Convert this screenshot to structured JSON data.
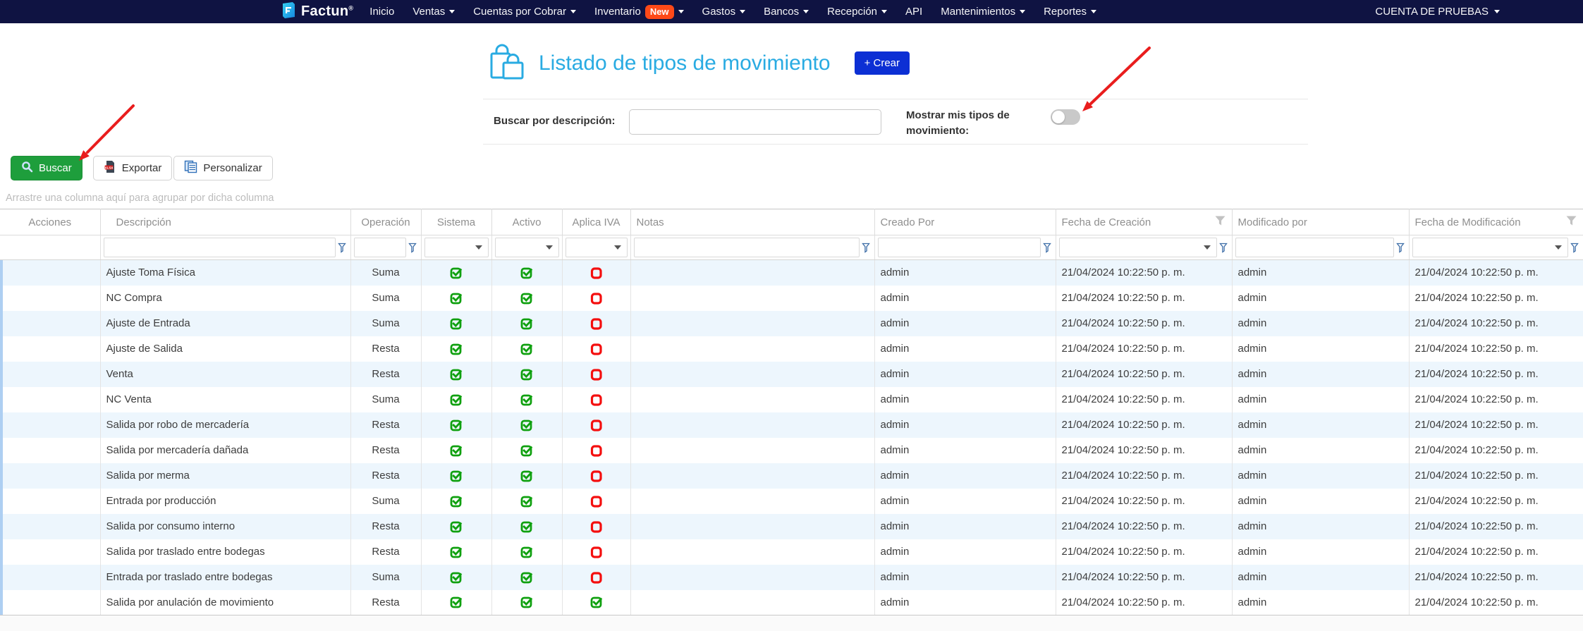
{
  "navbar": {
    "brand": "Factun",
    "brand_mark": "®",
    "items": [
      {
        "label": "Inicio",
        "caret": false,
        "badge": null
      },
      {
        "label": "Ventas",
        "caret": true,
        "badge": null
      },
      {
        "label": "Cuentas por Cobrar",
        "caret": true,
        "badge": null
      },
      {
        "label": "Inventario",
        "caret": true,
        "badge": "New"
      },
      {
        "label": "Gastos",
        "caret": true,
        "badge": null
      },
      {
        "label": "Bancos",
        "caret": true,
        "badge": null
      },
      {
        "label": "Recepción",
        "caret": true,
        "badge": null
      },
      {
        "label": "API",
        "caret": false,
        "badge": null
      },
      {
        "label": "Mantenimientos",
        "caret": true,
        "badge": null
      },
      {
        "label": "Reportes",
        "caret": true,
        "badge": null
      }
    ],
    "account": "CUENTA DE PRUEBAS"
  },
  "header": {
    "title": "Listado de tipos de movimiento",
    "create_button": "+ Crear"
  },
  "filters": {
    "search_label": "Buscar por descripción:",
    "search_value": "",
    "toggle_label": "Mostrar mis tipos de movimiento:",
    "toggle_state": "off"
  },
  "toolbar": {
    "buscar": "Buscar",
    "exportar": "Exportar",
    "personalizar": "Personalizar"
  },
  "group_panel": "Arrastre una columna aquí para agrupar por dicha columna",
  "grid": {
    "columns": [
      "Acciones",
      "Descripción",
      "Operación",
      "Sistema",
      "Activo",
      "Aplica IVA",
      "Notas",
      "Creado Por",
      "Fecha de Creación",
      "Modificado por",
      "Fecha de Modificación"
    ],
    "rows": [
      {
        "descripcion": "Ajuste Toma Física",
        "operacion": "Suma",
        "sistema": true,
        "activo": true,
        "aplica_iva": false,
        "notas": "",
        "creado_por": "admin",
        "fecha_creacion": "21/04/2024 10:22:50 p. m.",
        "modificado_por": "admin",
        "fecha_modificacion": "21/04/2024 10:22:50 p. m."
      },
      {
        "descripcion": "NC Compra",
        "operacion": "Suma",
        "sistema": true,
        "activo": true,
        "aplica_iva": false,
        "notas": "",
        "creado_por": "admin",
        "fecha_creacion": "21/04/2024 10:22:50 p. m.",
        "modificado_por": "admin",
        "fecha_modificacion": "21/04/2024 10:22:50 p. m."
      },
      {
        "descripcion": "Ajuste de Entrada",
        "operacion": "Suma",
        "sistema": true,
        "activo": true,
        "aplica_iva": false,
        "notas": "",
        "creado_por": "admin",
        "fecha_creacion": "21/04/2024 10:22:50 p. m.",
        "modificado_por": "admin",
        "fecha_modificacion": "21/04/2024 10:22:50 p. m."
      },
      {
        "descripcion": "Ajuste de Salida",
        "operacion": "Resta",
        "sistema": true,
        "activo": true,
        "aplica_iva": false,
        "notas": "",
        "creado_por": "admin",
        "fecha_creacion": "21/04/2024 10:22:50 p. m.",
        "modificado_por": "admin",
        "fecha_modificacion": "21/04/2024 10:22:50 p. m."
      },
      {
        "descripcion": "Venta",
        "operacion": "Resta",
        "sistema": true,
        "activo": true,
        "aplica_iva": false,
        "notas": "",
        "creado_por": "admin",
        "fecha_creacion": "21/04/2024 10:22:50 p. m.",
        "modificado_por": "admin",
        "fecha_modificacion": "21/04/2024 10:22:50 p. m."
      },
      {
        "descripcion": "NC Venta",
        "operacion": "Suma",
        "sistema": true,
        "activo": true,
        "aplica_iva": false,
        "notas": "",
        "creado_por": "admin",
        "fecha_creacion": "21/04/2024 10:22:50 p. m.",
        "modificado_por": "admin",
        "fecha_modificacion": "21/04/2024 10:22:50 p. m."
      },
      {
        "descripcion": "Salida por robo de mercadería",
        "operacion": "Resta",
        "sistema": true,
        "activo": true,
        "aplica_iva": false,
        "notas": "",
        "creado_por": "admin",
        "fecha_creacion": "21/04/2024 10:22:50 p. m.",
        "modificado_por": "admin",
        "fecha_modificacion": "21/04/2024 10:22:50 p. m."
      },
      {
        "descripcion": "Salida por mercadería dañada",
        "operacion": "Resta",
        "sistema": true,
        "activo": true,
        "aplica_iva": false,
        "notas": "",
        "creado_por": "admin",
        "fecha_creacion": "21/04/2024 10:22:50 p. m.",
        "modificado_por": "admin",
        "fecha_modificacion": "21/04/2024 10:22:50 p. m."
      },
      {
        "descripcion": "Salida por merma",
        "operacion": "Resta",
        "sistema": true,
        "activo": true,
        "aplica_iva": false,
        "notas": "",
        "creado_por": "admin",
        "fecha_creacion": "21/04/2024 10:22:50 p. m.",
        "modificado_por": "admin",
        "fecha_modificacion": "21/04/2024 10:22:50 p. m."
      },
      {
        "descripcion": "Entrada por producción",
        "operacion": "Suma",
        "sistema": true,
        "activo": true,
        "aplica_iva": false,
        "notas": "",
        "creado_por": "admin",
        "fecha_creacion": "21/04/2024 10:22:50 p. m.",
        "modificado_por": "admin",
        "fecha_modificacion": "21/04/2024 10:22:50 p. m."
      },
      {
        "descripcion": "Salida por consumo interno",
        "operacion": "Resta",
        "sistema": true,
        "activo": true,
        "aplica_iva": false,
        "notas": "",
        "creado_por": "admin",
        "fecha_creacion": "21/04/2024 10:22:50 p. m.",
        "modificado_por": "admin",
        "fecha_modificacion": "21/04/2024 10:22:50 p. m."
      },
      {
        "descripcion": "Salida por traslado entre bodegas",
        "operacion": "Resta",
        "sistema": true,
        "activo": true,
        "aplica_iva": false,
        "notas": "",
        "creado_por": "admin",
        "fecha_creacion": "21/04/2024 10:22:50 p. m.",
        "modificado_por": "admin",
        "fecha_modificacion": "21/04/2024 10:22:50 p. m."
      },
      {
        "descripcion": "Entrada por traslado entre bodegas",
        "operacion": "Suma",
        "sistema": true,
        "activo": true,
        "aplica_iva": false,
        "notas": "",
        "creado_por": "admin",
        "fecha_creacion": "21/04/2024 10:22:50 p. m.",
        "modificado_por": "admin",
        "fecha_modificacion": "21/04/2024 10:22:50 p. m."
      },
      {
        "descripcion": "Salida por anulación de movimiento",
        "operacion": "Resta",
        "sistema": true,
        "activo": true,
        "aplica_iva": true,
        "notas": "",
        "creado_por": "admin",
        "fecha_creacion": "21/04/2024 10:22:50 p. m.",
        "modificado_por": "admin",
        "fecha_modificacion": "21/04/2024 10:22:50 p. m."
      }
    ]
  },
  "colors": {
    "navbar_bg": "#0f1342",
    "badge_new": "#fe4918",
    "title_blue": "#29abe2",
    "create_btn_blue": "#0c2fd4",
    "buscar_green": "#1e9e3c",
    "check_green": "#0fa00f",
    "cross_red": "#f40f0f",
    "row_alt_blue": "#edf6fd",
    "arrow_red": "#e91d1d"
  }
}
